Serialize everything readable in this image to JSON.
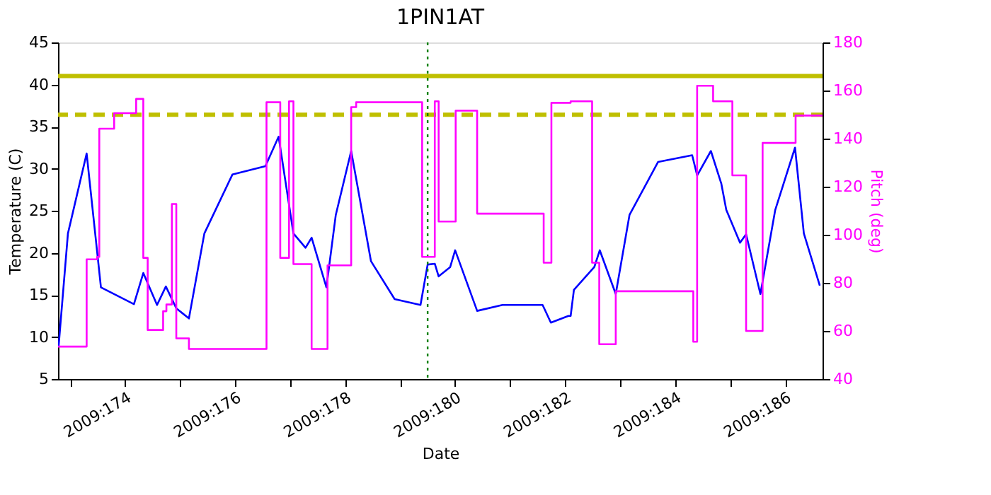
{
  "chart_data": {
    "type": "line",
    "title": "1PIN1AT",
    "xlabel": "Date",
    "ylabel": "Temperature (C)",
    "y2label": "Pitch (deg)",
    "xlim": [
      "2009-06-21T18:43",
      "2009-07-05T16:19"
    ],
    "xticks": [
      {
        "value": "2009-06-22T00:00",
        "label": null
      },
      {
        "value": "2009-06-23T00:00",
        "label": "2009:174"
      },
      {
        "value": "2009-06-24T00:00",
        "label": null
      },
      {
        "value": "2009-06-25T00:00",
        "label": "2009:176"
      },
      {
        "value": "2009-06-26T00:00",
        "label": null
      },
      {
        "value": "2009-06-27T00:00",
        "label": "2009:178"
      },
      {
        "value": "2009-06-28T00:00",
        "label": null
      },
      {
        "value": "2009-06-29T00:00",
        "label": "2009:180"
      },
      {
        "value": "2009-06-30T00:00",
        "label": null
      },
      {
        "value": "2009-07-01T00:00",
        "label": "2009:182"
      },
      {
        "value": "2009-07-02T00:00",
        "label": null
      },
      {
        "value": "2009-07-03T00:00",
        "label": "2009:184"
      },
      {
        "value": "2009-07-04T00:00",
        "label": null
      },
      {
        "value": "2009-07-05T00:00",
        "label": "2009:186"
      }
    ],
    "ylim": [
      5,
      45
    ],
    "yticks": [
      5,
      10,
      15,
      20,
      25,
      30,
      35,
      40,
      45
    ],
    "y2lim": [
      40,
      180
    ],
    "y2ticks": [
      40,
      60,
      80,
      100,
      120,
      140,
      160,
      180
    ],
    "grid": false,
    "marker": "none",
    "line_style": "solid",
    "series": [
      {
        "type": "line",
        "color": "#0000ff",
        "x": [
          "2009-06-21T18:58",
          "2009-06-21T23:02",
          "2009-06-22T07:12",
          "2009-06-22T13:26",
          "2009-06-23T03:50",
          "2009-06-23T07:55",
          "2009-06-23T13:55",
          "2009-06-23T17:46",
          "2009-06-23T22:19",
          "2009-06-24T03:50",
          "2009-06-24T10:34",
          "2009-06-24T22:48",
          "2009-06-25T13:12",
          "2009-06-25T18:58",
          "2009-06-26T01:26",
          "2009-06-26T06:43",
          "2009-06-26T09:22",
          "2009-06-26T15:50",
          "2009-06-26T19:55",
          "2009-06-27T02:38",
          "2009-06-27T11:17",
          "2009-06-27T21:36",
          "2009-06-28T08:53",
          "2009-06-28T12:00",
          "2009-06-28T15:07",
          "2009-06-28T16:48",
          "2009-06-28T21:50",
          "2009-06-29T00:00",
          "2009-06-29T09:36",
          "2009-06-29T20:38",
          "2009-06-30T14:10",
          "2009-06-30T17:46",
          "2009-07-01T01:26",
          "2009-07-01T02:24",
          "2009-07-01T03:50",
          "2009-07-01T12:43",
          "2009-07-01T15:07",
          "2009-07-01T22:05",
          "2009-07-02T04:05",
          "2009-07-02T16:34",
          "2009-07-03T07:26",
          "2009-07-03T09:36",
          "2009-07-03T15:36",
          "2009-07-03T20:10",
          "2009-07-03T22:19",
          "2009-07-04T04:19",
          "2009-07-04T06:58",
          "2009-07-04T13:12",
          "2009-07-04T19:41",
          "2009-07-05T04:19",
          "2009-07-05T08:10",
          "2009-07-05T15:07"
        ],
        "values": [
          8.9,
          22.3,
          31.8,
          15.9,
          13.9,
          17.6,
          13.8,
          16.0,
          13.4,
          12.2,
          22.3,
          29.3,
          30.3,
          33.8,
          22.3,
          20.6,
          21.8,
          15.9,
          24.5,
          32.1,
          19.0,
          14.5,
          13.8,
          18.6,
          18.7,
          17.2,
          18.3,
          20.3,
          13.1,
          13.8,
          13.8,
          11.7,
          12.5,
          12.5,
          15.6,
          18.3,
          20.3,
          15.1,
          24.5,
          30.8,
          31.6,
          29.2,
          32.1,
          28.2,
          25.1,
          21.2,
          22.2,
          15.1,
          25.1,
          32.5,
          22.3,
          16.1
        ]
      },
      {
        "type": "step",
        "axis": "y2",
        "color": "#ff00ff",
        "x": [
          "2009-06-21T18:43",
          "2009-06-22T07:12",
          "2009-06-22T11:46",
          "2009-06-22T12:43",
          "2009-06-22T19:12",
          "2009-06-23T04:48",
          "2009-06-23T07:55",
          "2009-06-23T09:50",
          "2009-06-23T16:34",
          "2009-06-23T18:00",
          "2009-06-23T20:24",
          "2009-06-23T22:19",
          "2009-06-24T03:50",
          "2009-06-25T13:41",
          "2009-06-25T19:41",
          "2009-06-25T23:31",
          "2009-06-26T01:26",
          "2009-06-26T09:22",
          "2009-06-26T16:19",
          "2009-06-27T02:38",
          "2009-06-27T04:48",
          "2009-06-28T09:36",
          "2009-06-28T15:07",
          "2009-06-28T16:48",
          "2009-06-29T00:14",
          "2009-06-29T09:36",
          "2009-06-30T14:38",
          "2009-06-30T18:00",
          "2009-07-01T02:24",
          "2009-07-01T11:46",
          "2009-07-01T14:53",
          "2009-07-01T22:05",
          "2009-07-03T07:55",
          "2009-07-03T09:36",
          "2009-07-03T16:34",
          "2009-07-04T00:58",
          "2009-07-04T06:58",
          "2009-07-04T14:10",
          "2009-07-05T04:34",
          "2009-07-05T08:10",
          "2009-07-05T16:19"
        ],
        "values": [
          53.5,
          89.8,
          90.8,
          144.1,
          150.6,
          156.5,
          90.4,
          60.4,
          68.2,
          71.0,
          112.8,
          56.9,
          52.5,
          155.1,
          90.4,
          155.5,
          87.8,
          52.5,
          87.3,
          153.1,
          155.1,
          90.8,
          155.5,
          105.5,
          151.6,
          108.8,
          88.4,
          154.9,
          155.5,
          88.4,
          54.5,
          76.5,
          55.5,
          162.0,
          155.5,
          124.7,
          60.0,
          138.2,
          149.6,
          149.6,
          149.6
        ]
      }
    ],
    "ref_lines": [
      {
        "axis": "y",
        "value": 41.0,
        "color": "#bfbf00",
        "line_style": "solid"
      },
      {
        "axis": "y",
        "value": 36.4,
        "color": "#bfbf00",
        "line_style": "dashed"
      },
      {
        "axis": "x",
        "value": "2009-06-28T12:00",
        "color": "#008000",
        "line_style": "dotted"
      }
    ]
  }
}
